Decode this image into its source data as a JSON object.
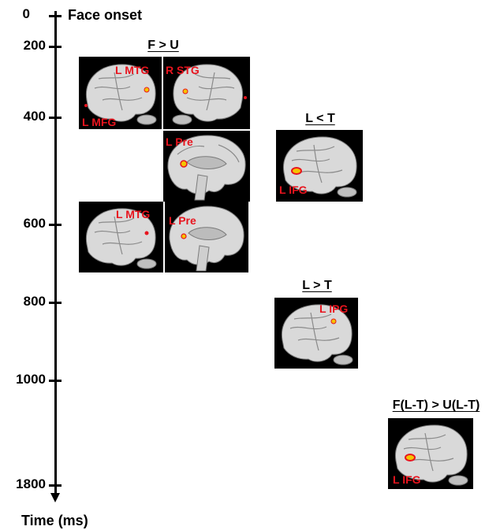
{
  "timeline": {
    "onset_label": "Face onset",
    "axis_title": "Time (ms)",
    "ticks": [
      "0",
      "200",
      "400",
      "600",
      "800",
      "1000",
      "1800"
    ]
  },
  "groups": {
    "f_gt_u": {
      "title": "F > U"
    },
    "l_lt_t": {
      "title": "L < T"
    },
    "l_gt_t": {
      "title": "L > T"
    },
    "interaction": {
      "title": "F(L-T) > U(L-T)"
    }
  },
  "panels": {
    "p1": {
      "labels": [
        "L MTG",
        "L MFG"
      ]
    },
    "p2": {
      "labels": [
        "R STG"
      ]
    },
    "p3": {
      "labels": [
        "L Pre"
      ]
    },
    "p4": {
      "labels": [
        "L MTG"
      ]
    },
    "p5": {
      "labels": [
        "L Pre"
      ]
    },
    "p6": {
      "labels": [
        "L IFG"
      ]
    },
    "p7": {
      "labels": [
        "L IPG"
      ]
    },
    "p8": {
      "labels": [
        "L IFG"
      ]
    }
  },
  "colors": {
    "label": "#e8141e",
    "activation": "#f5c400",
    "brain": "#d9d9d9",
    "panel_bg": "#000000"
  }
}
